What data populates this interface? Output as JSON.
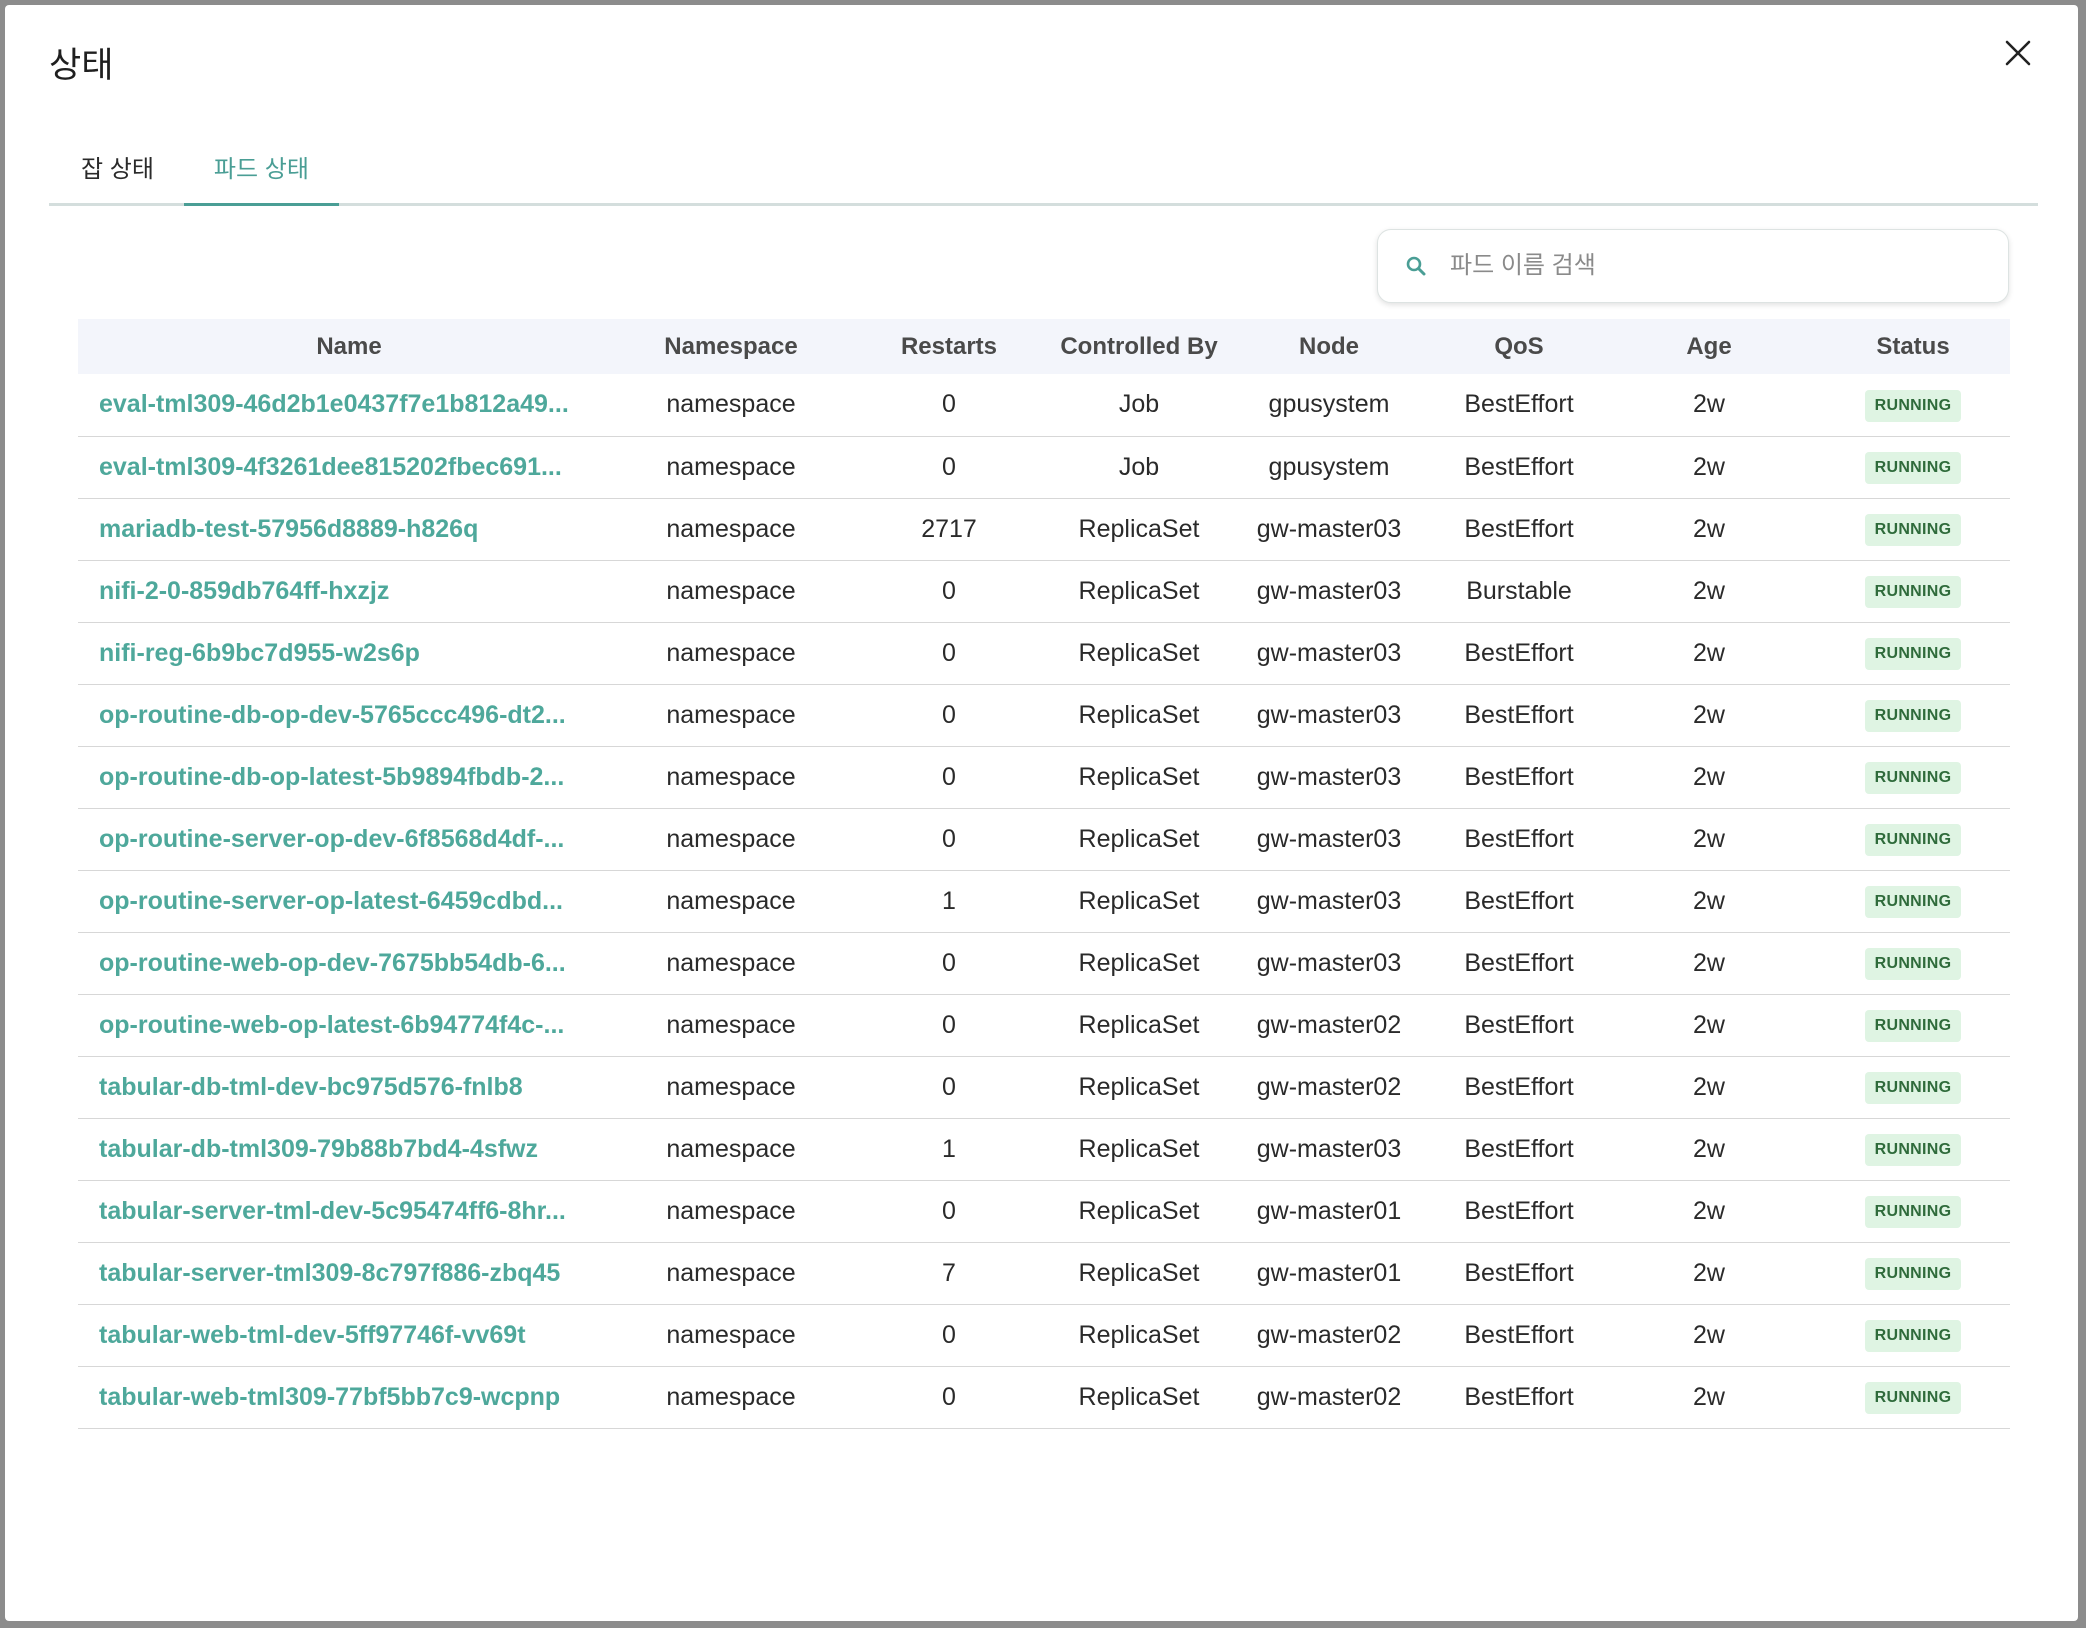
{
  "modal": {
    "title": "상태",
    "close_label": "×"
  },
  "tabs": [
    {
      "label": "잡 상태",
      "active": false
    },
    {
      "label": "파드 상태",
      "active": true
    }
  ],
  "search": {
    "placeholder": "파드 이름 검색",
    "value": ""
  },
  "table": {
    "columns": [
      "Name",
      "Namespace",
      "Restarts",
      "Controlled By",
      "Node",
      "QoS",
      "Age",
      "Status"
    ],
    "rows": [
      {
        "name": "eval-tml309-46d2b1e0437f7e1b812a49...",
        "namespace": "namespace",
        "restarts": "0",
        "controlled_by": "Job",
        "node": "gpusystem",
        "qos": "BestEffort",
        "age": "2w",
        "status": "RUNNING"
      },
      {
        "name": "eval-tml309-4f3261dee815202fbec691...",
        "namespace": "namespace",
        "restarts": "0",
        "controlled_by": "Job",
        "node": "gpusystem",
        "qos": "BestEffort",
        "age": "2w",
        "status": "RUNNING"
      },
      {
        "name": "mariadb-test-57956d8889-h826q",
        "namespace": "namespace",
        "restarts": "2717",
        "controlled_by": "ReplicaSet",
        "node": "gw-master03",
        "qos": "BestEffort",
        "age": "2w",
        "status": "RUNNING"
      },
      {
        "name": "nifi-2-0-859db764ff-hxzjz",
        "namespace": "namespace",
        "restarts": "0",
        "controlled_by": "ReplicaSet",
        "node": "gw-master03",
        "qos": "Burstable",
        "age": "2w",
        "status": "RUNNING"
      },
      {
        "name": "nifi-reg-6b9bc7d955-w2s6p",
        "namespace": "namespace",
        "restarts": "0",
        "controlled_by": "ReplicaSet",
        "node": "gw-master03",
        "qos": "BestEffort",
        "age": "2w",
        "status": "RUNNING"
      },
      {
        "name": "op-routine-db-op-dev-5765ccc496-dt2...",
        "namespace": "namespace",
        "restarts": "0",
        "controlled_by": "ReplicaSet",
        "node": "gw-master03",
        "qos": "BestEffort",
        "age": "2w",
        "status": "RUNNING"
      },
      {
        "name": "op-routine-db-op-latest-5b9894fbdb-2...",
        "namespace": "namespace",
        "restarts": "0",
        "controlled_by": "ReplicaSet",
        "node": "gw-master03",
        "qos": "BestEffort",
        "age": "2w",
        "status": "RUNNING"
      },
      {
        "name": "op-routine-server-op-dev-6f8568d4df-...",
        "namespace": "namespace",
        "restarts": "0",
        "controlled_by": "ReplicaSet",
        "node": "gw-master03",
        "qos": "BestEffort",
        "age": "2w",
        "status": "RUNNING"
      },
      {
        "name": "op-routine-server-op-latest-6459cdbd...",
        "namespace": "namespace",
        "restarts": "1",
        "controlled_by": "ReplicaSet",
        "node": "gw-master03",
        "qos": "BestEffort",
        "age": "2w",
        "status": "RUNNING"
      },
      {
        "name": "op-routine-web-op-dev-7675bb54db-6...",
        "namespace": "namespace",
        "restarts": "0",
        "controlled_by": "ReplicaSet",
        "node": "gw-master03",
        "qos": "BestEffort",
        "age": "2w",
        "status": "RUNNING"
      },
      {
        "name": "op-routine-web-op-latest-6b94774f4c-...",
        "namespace": "namespace",
        "restarts": "0",
        "controlled_by": "ReplicaSet",
        "node": "gw-master02",
        "qos": "BestEffort",
        "age": "2w",
        "status": "RUNNING"
      },
      {
        "name": "tabular-db-tml-dev-bc975d576-fnlb8",
        "namespace": "namespace",
        "restarts": "0",
        "controlled_by": "ReplicaSet",
        "node": "gw-master02",
        "qos": "BestEffort",
        "age": "2w",
        "status": "RUNNING"
      },
      {
        "name": "tabular-db-tml309-79b88b7bd4-4sfwz",
        "namespace": "namespace",
        "restarts": "1",
        "controlled_by": "ReplicaSet",
        "node": "gw-master03",
        "qos": "BestEffort",
        "age": "2w",
        "status": "RUNNING"
      },
      {
        "name": "tabular-server-tml-dev-5c95474ff6-8hr...",
        "namespace": "namespace",
        "restarts": "0",
        "controlled_by": "ReplicaSet",
        "node": "gw-master01",
        "qos": "BestEffort",
        "age": "2w",
        "status": "RUNNING"
      },
      {
        "name": "tabular-server-tml309-8c797f886-zbq45",
        "namespace": "namespace",
        "restarts": "7",
        "controlled_by": "ReplicaSet",
        "node": "gw-master01",
        "qos": "BestEffort",
        "age": "2w",
        "status": "RUNNING"
      },
      {
        "name": "tabular-web-tml-dev-5ff97746f-vv69t",
        "namespace": "namespace",
        "restarts": "0",
        "controlled_by": "ReplicaSet",
        "node": "gw-master02",
        "qos": "BestEffort",
        "age": "2w",
        "status": "RUNNING"
      },
      {
        "name": "tabular-web-tml309-77bf5bb7c9-wcpnp",
        "namespace": "namespace",
        "restarts": "0",
        "controlled_by": "ReplicaSet",
        "node": "gw-master02",
        "qos": "BestEffort",
        "age": "2w",
        "status": "RUNNING"
      }
    ]
  },
  "colors": {
    "accent": "#4a9e95",
    "link": "#4ea89b",
    "status_bg": "#dff4e3",
    "status_text": "#2f6b3b",
    "header_bg": "#f3f5fb"
  },
  "icons": {
    "close": "close-icon",
    "search": "search-icon"
  }
}
